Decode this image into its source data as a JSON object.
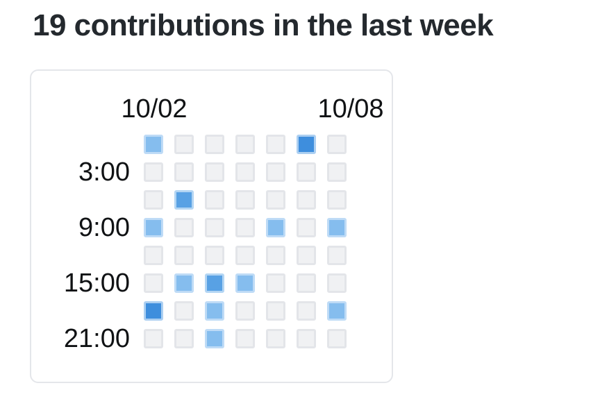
{
  "title": "19 contributions in the last week",
  "chart_data": {
    "type": "heatmap",
    "title": "19 contributions in the last week",
    "total_contributions": 19,
    "x_axis": {
      "label_start": "10/02",
      "label_end": "10/08",
      "columns": 7,
      "unit": "day"
    },
    "y_axis": {
      "labels": [
        "3:00",
        "9:00",
        "15:00",
        "21:00"
      ],
      "rows": 8,
      "unit": "3-hour block",
      "labeled_rows": [
        2,
        4,
        6,
        8
      ]
    },
    "values": [
      [
        1,
        0,
        0,
        0,
        0,
        3,
        0
      ],
      [
        0,
        0,
        0,
        0,
        0,
        0,
        0
      ],
      [
        0,
        2,
        0,
        0,
        0,
        0,
        0
      ],
      [
        1,
        0,
        0,
        0,
        1,
        0,
        1
      ],
      [
        0,
        0,
        0,
        0,
        0,
        0,
        0
      ],
      [
        0,
        1,
        2,
        1,
        0,
        0,
        0
      ],
      [
        3,
        0,
        1,
        0,
        0,
        0,
        1
      ],
      [
        0,
        0,
        1,
        0,
        0,
        0,
        0
      ]
    ],
    "value_semantics": "intensity level 0-3 per cell; levels 1/2/3 sum to the 19 contributions in the title",
    "level_colors": {
      "0": "#f0f1f3",
      "1": "#85bdee",
      "2": "#58a1e4",
      "3": "#3e8edd"
    },
    "level_border_colors": {
      "0": "#e3e5e9",
      "1": "#bedbf6",
      "2": "#b3d5f3",
      "3": "#accff1"
    },
    "grid": "off",
    "legend": "none"
  },
  "colors": {
    "title_text": "#24292e",
    "label_text": "#101214",
    "card_border": "#e4e6ea",
    "background": "#ffffff"
  }
}
